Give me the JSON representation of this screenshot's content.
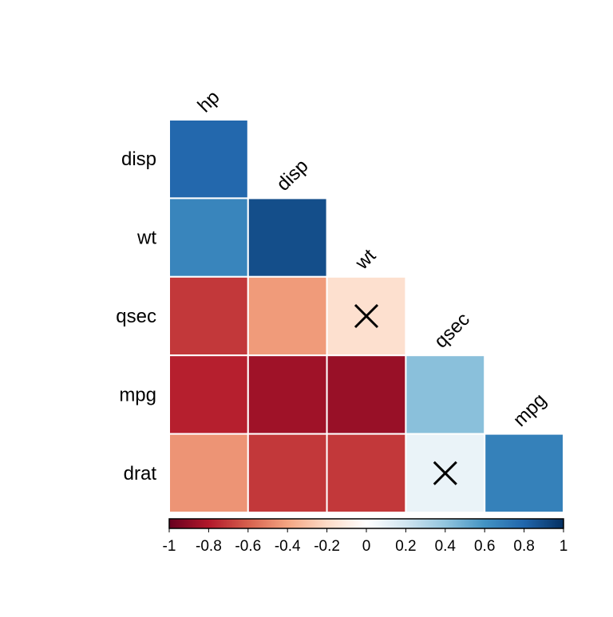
{
  "chart_data": {
    "type": "heatmap",
    "variant": "correlation-matrix-lower-triangle",
    "variables": [
      "hp",
      "disp",
      "wt",
      "qsec",
      "mpg",
      "drat"
    ],
    "column_labels": [
      "hp",
      "disp",
      "wt",
      "qsec",
      "mpg"
    ],
    "row_labels": [
      "disp",
      "wt",
      "qsec",
      "mpg",
      "drat"
    ],
    "matrix": [
      [
        0.79
      ],
      [
        0.66,
        0.89
      ],
      [
        -0.71,
        -0.43,
        -0.17
      ],
      [
        -0.78,
        -0.85,
        -0.87,
        0.42
      ],
      [
        -0.45,
        -0.71,
        -0.71,
        0.09,
        0.68
      ]
    ],
    "insignificant": [
      [
        2,
        2
      ],
      [
        4,
        3
      ]
    ],
    "insignificant_marker": "cross",
    "colorbar": {
      "range": [
        -1,
        1
      ],
      "ticks": [
        "-1",
        "-0.8",
        "-0.6",
        "-0.4",
        "-0.2",
        "0",
        "0.2",
        "0.4",
        "0.6",
        "0.8",
        "1"
      ],
      "palette": [
        "#67001F",
        "#B2182B",
        "#D6604D",
        "#F4A582",
        "#FDDBC7",
        "#FFFFFF",
        "#D1E5F0",
        "#92C5DE",
        "#4393C3",
        "#2166AC",
        "#053061"
      ],
      "placement": "bottom"
    }
  }
}
